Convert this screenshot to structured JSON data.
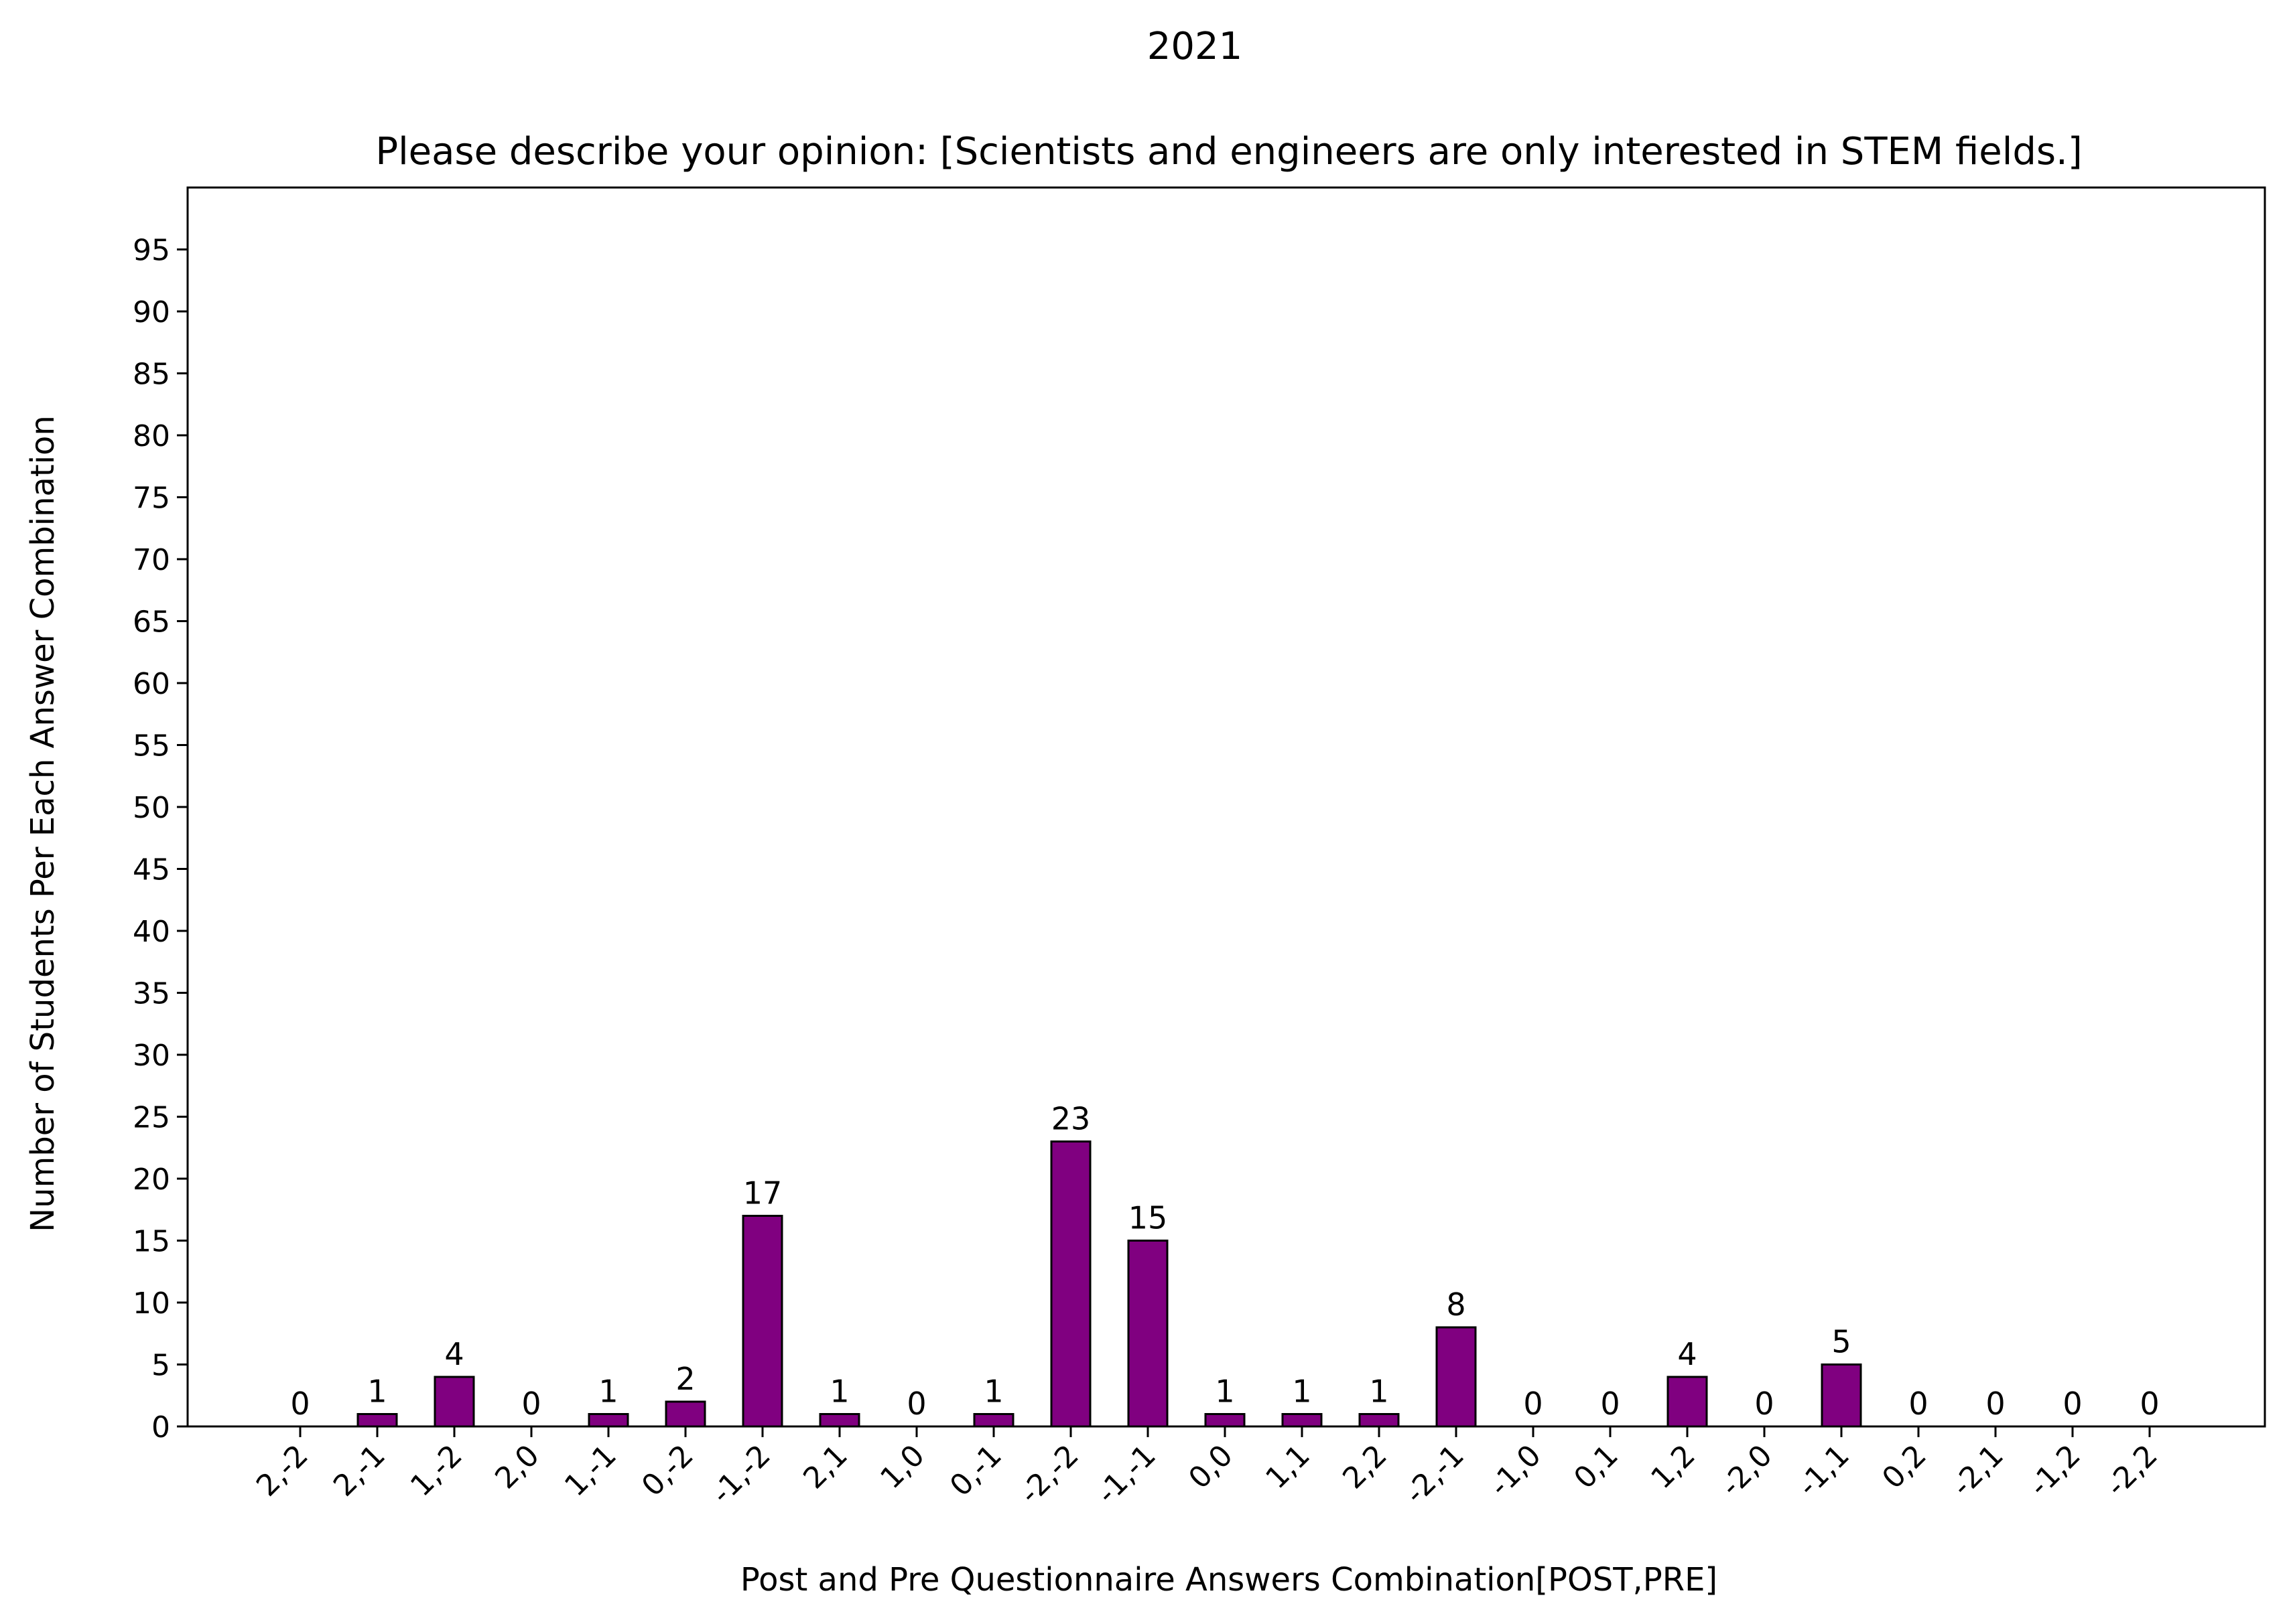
{
  "chart_data": {
    "type": "bar",
    "suptitle": "2021",
    "title": "Please describe your opinion: [Scientists and engineers are only interested in STEM fields.]",
    "xlabel": "Post and Pre Questionnaire Answers Combination[POST,PRE]",
    "ylabel": "Number of Students Per Each Answer Combination",
    "categories": [
      "2,-2",
      "2,-1",
      "1,-2",
      "2,0",
      "1,-1",
      "0,-2",
      "-1,-2",
      "2,1",
      "1,0",
      "0,-1",
      "-2,-2",
      "-1,-1",
      "0,0",
      "1,1",
      "2,2",
      "-2,-1",
      "-1,0",
      "0,1",
      "1,2",
      "-2,0",
      "-1,1",
      "0,2",
      "-2,1",
      "-1,2",
      "-2,2"
    ],
    "values": [
      0,
      1,
      4,
      0,
      1,
      2,
      17,
      1,
      0,
      1,
      23,
      15,
      1,
      1,
      1,
      8,
      0,
      0,
      4,
      0,
      5,
      0,
      0,
      0,
      0
    ],
    "ylim": [
      0,
      100
    ],
    "yticks": [
      0,
      5,
      10,
      15,
      20,
      25,
      30,
      35,
      40,
      45,
      50,
      55,
      60,
      65,
      70,
      75,
      80,
      85,
      90,
      95
    ],
    "bar_color": "#800080",
    "edge_color": "#000000",
    "grid": false,
    "legend": false
  }
}
